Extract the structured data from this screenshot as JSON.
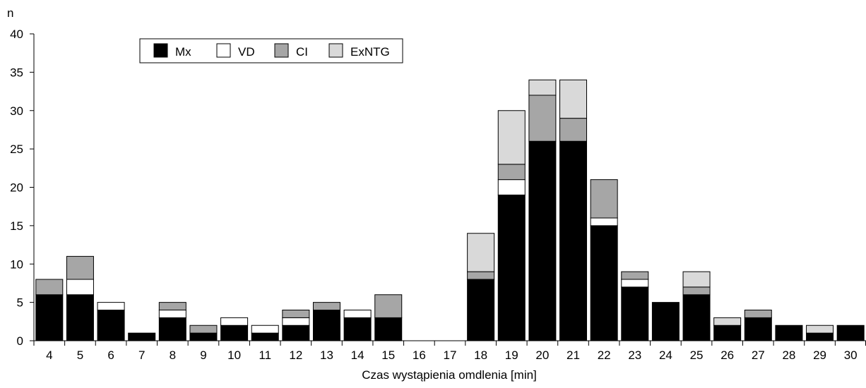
{
  "chart_data": {
    "type": "bar",
    "stacked": true,
    "title": "",
    "ylabel": "n",
    "xlabel": "Czas wystąpienia omdlenia  [min]",
    "ylim": [
      0,
      40
    ],
    "yticks": [
      0,
      5,
      10,
      15,
      20,
      25,
      30,
      35,
      40
    ],
    "grid": false,
    "legend_position": "top-left",
    "categories": [
      "4",
      "5",
      "6",
      "7",
      "8",
      "9",
      "10",
      "11",
      "12",
      "13",
      "14",
      "15",
      "16",
      "17",
      "18",
      "19",
      "20",
      "21",
      "22",
      "23",
      "24",
      "25",
      "26",
      "27",
      "28",
      "29",
      "30"
    ],
    "series": [
      {
        "name": "Mx",
        "color": "#000000",
        "values": [
          6,
          6,
          4,
          1,
          3,
          1,
          2,
          1,
          2,
          4,
          3,
          3,
          0,
          0,
          8,
          19,
          26,
          26,
          15,
          7,
          5,
          6,
          2,
          3,
          2,
          1,
          2
        ]
      },
      {
        "name": "VD",
        "color": "#ffffff",
        "values": [
          0,
          2,
          1,
          0,
          1,
          0,
          1,
          1,
          1,
          0,
          1,
          0,
          0,
          0,
          0,
          2,
          0,
          0,
          1,
          1,
          0,
          0,
          0,
          0,
          0,
          0,
          0
        ]
      },
      {
        "name": "CI",
        "color": "#a6a6a6",
        "values": [
          2,
          3,
          0,
          0,
          1,
          1,
          0,
          0,
          1,
          1,
          0,
          3,
          0,
          0,
          1,
          2,
          6,
          3,
          5,
          1,
          0,
          1,
          0,
          1,
          0,
          0,
          0
        ]
      },
      {
        "name": "ExNTG",
        "color": "#d9d9d9",
        "values": [
          0,
          0,
          0,
          0,
          0,
          0,
          0,
          0,
          0,
          0,
          0,
          0,
          0,
          0,
          5,
          7,
          2,
          5,
          0,
          0,
          0,
          2,
          1,
          0,
          0,
          1,
          0
        ]
      }
    ]
  }
}
